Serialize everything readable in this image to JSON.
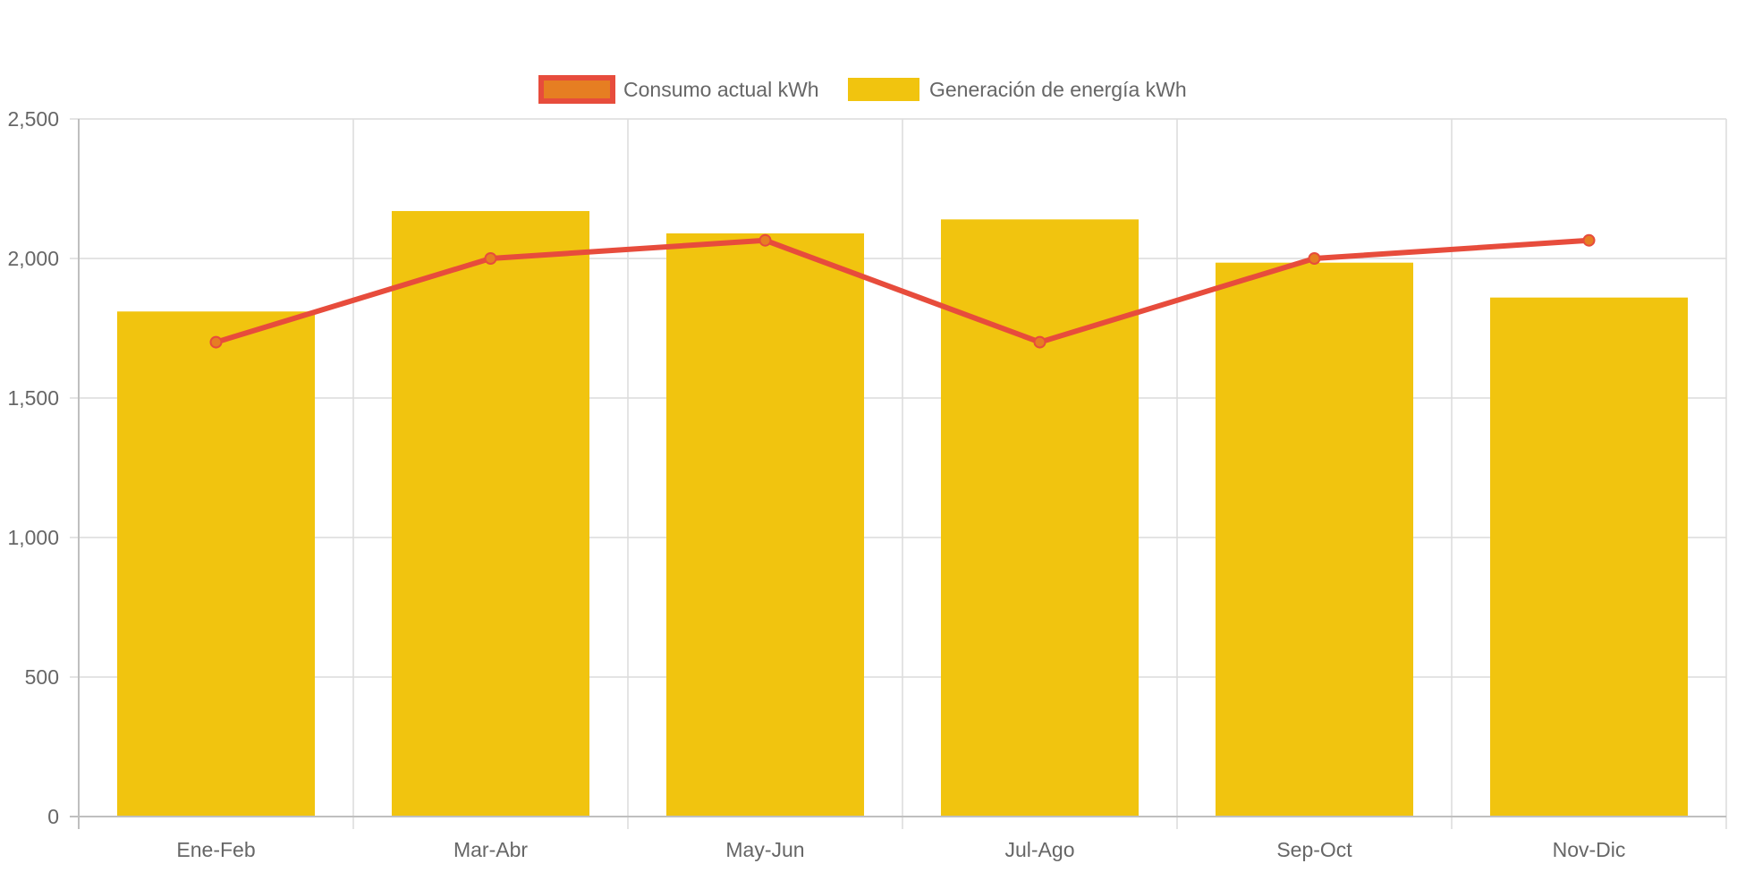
{
  "chart_data": {
    "type": "bar",
    "categories": [
      "Ene-Feb",
      "Mar-Abr",
      "May-Jun",
      "Jul-Ago",
      "Sep-Oct",
      "Nov-Dic"
    ],
    "series": [
      {
        "name": "Consumo actual kWh",
        "type": "line",
        "values": [
          1700,
          2000,
          2065,
          1700,
          2000,
          2065
        ],
        "line_color": "#E74C3C",
        "point_color": "#E67E22"
      },
      {
        "name": "Generación de energía kWh",
        "type": "bar",
        "values": [
          1810,
          2170,
          2090,
          2140,
          1985,
          1860
        ],
        "color": "#F1C40F"
      }
    ],
    "ylim": [
      0,
      2500
    ],
    "yticks": [
      0,
      500,
      1000,
      1500,
      2000,
      2500
    ],
    "ytick_labels": [
      "0",
      "500",
      "1,000",
      "1,500",
      "2,000",
      "2,500"
    ],
    "grid": true,
    "legend_position": "top-center",
    "title": "",
    "xlabel": "",
    "ylabel": ""
  }
}
